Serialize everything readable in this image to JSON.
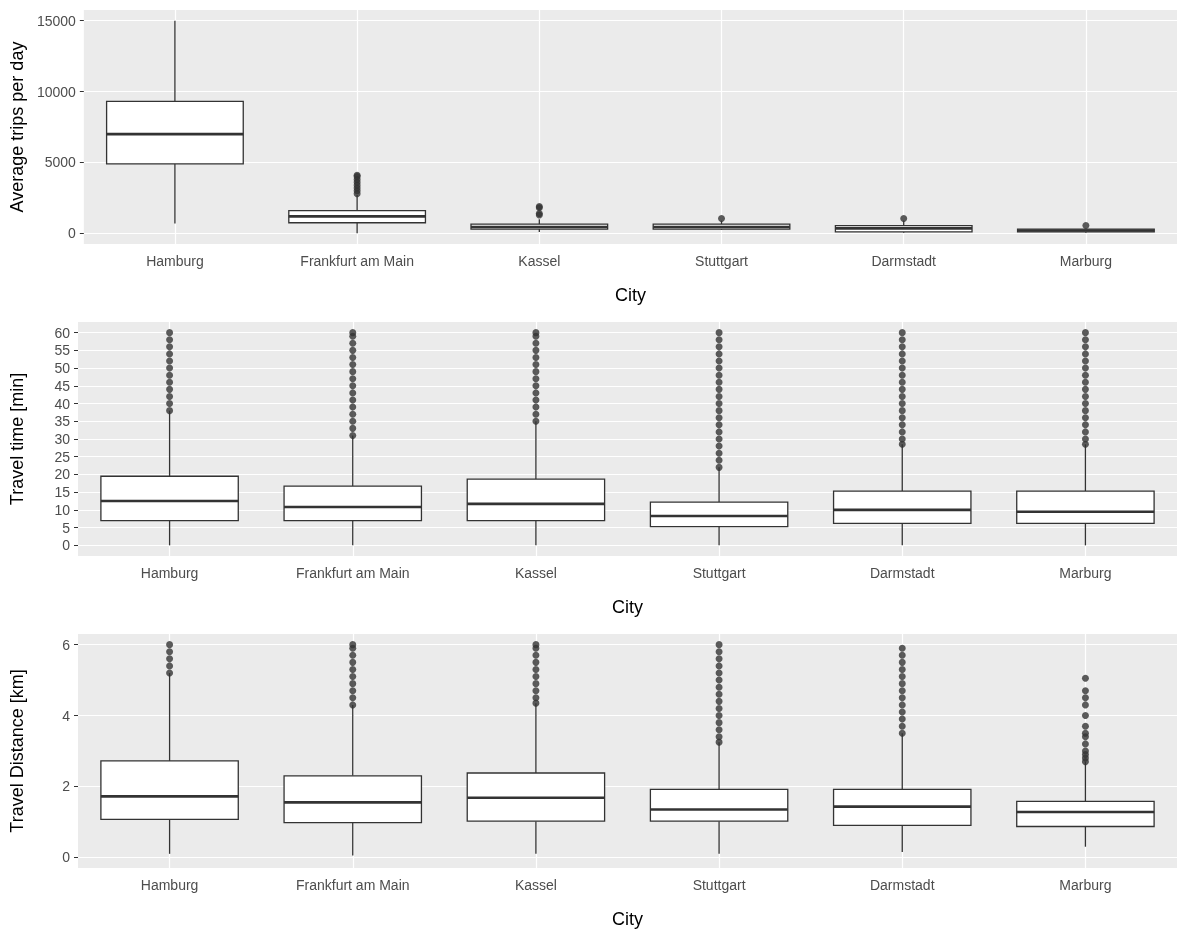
{
  "chart_data": [
    {
      "type": "box",
      "xlabel": "City",
      "ylabel": "Average trips per day",
      "categories": [
        "Hamburg",
        "Frankfurt am Main",
        "Kassel",
        "Stuttgart",
        "Darmstadt",
        "Marburg"
      ],
      "boxes": [
        {
          "low": 700,
          "q1": 4900,
          "median": 7000,
          "q3": 9300,
          "high": 15000
        },
        {
          "low": 0,
          "q1": 750,
          "median": 1200,
          "q3": 1600,
          "high": 2700,
          "outliers": [
            2800,
            3000,
            3200,
            3400,
            3600,
            3800,
            4000,
            4100
          ]
        },
        {
          "low": 100,
          "q1": 300,
          "median": 450,
          "q3": 650,
          "high": 1000,
          "outliers": [
            1300,
            1400,
            1800,
            1900
          ]
        },
        {
          "low": 250,
          "q1": 300,
          "median": 450,
          "q3": 650,
          "high": 900,
          "outliers": [
            1050
          ]
        },
        {
          "low": 50,
          "q1": 100,
          "median": 350,
          "q3": 550,
          "high": 900,
          "outliers": [
            1050
          ]
        },
        {
          "low": 50,
          "q1": 100,
          "median": 200,
          "q3": 300,
          "high": 300,
          "outliers": [
            550
          ]
        }
      ],
      "ylim": [
        -750,
        15750
      ],
      "yticks": [
        0,
        5000,
        10000,
        15000
      ],
      "grid": true
    },
    {
      "type": "box",
      "xlabel": "City",
      "ylabel": "Travel time [min]",
      "categories": [
        "Hamburg",
        "Frankfurt am Main",
        "Kassel",
        "Stuttgart",
        "Darmstadt",
        "Marburg"
      ],
      "boxes": [
        {
          "low": 0,
          "q1": 7,
          "median": 12.5,
          "q3": 19.5,
          "high": 38,
          "outliers": [
            38,
            40,
            42,
            44,
            46,
            48,
            50,
            52,
            54,
            56,
            58,
            60
          ]
        },
        {
          "low": 0,
          "q1": 7,
          "median": 10.8,
          "q3": 16.7,
          "high": 31,
          "outliers": [
            31,
            33,
            35,
            37,
            39,
            41,
            43,
            45,
            47,
            49,
            51,
            53,
            55,
            57,
            59,
            60
          ]
        },
        {
          "low": 0,
          "q1": 7,
          "median": 11.7,
          "q3": 18.7,
          "high": 35,
          "outliers": [
            35,
            37,
            39,
            41,
            43,
            45,
            47,
            49,
            51,
            53,
            55,
            57,
            59,
            60
          ]
        },
        {
          "low": 0,
          "q1": 5.3,
          "median": 8.3,
          "q3": 12.2,
          "high": 22,
          "outliers": [
            22,
            24,
            26,
            28,
            30,
            32,
            34,
            36,
            38,
            40,
            42,
            44,
            46,
            48,
            50,
            52,
            54,
            56,
            58,
            60
          ]
        },
        {
          "low": 0,
          "q1": 6.2,
          "median": 10,
          "q3": 15.3,
          "high": 28.5,
          "outliers": [
            28.5,
            30,
            32,
            34,
            36,
            38,
            40,
            42,
            44,
            46,
            48,
            50,
            52,
            54,
            56,
            58,
            60
          ]
        },
        {
          "low": 0,
          "q1": 6.2,
          "median": 9.5,
          "q3": 15.3,
          "high": 28.5,
          "outliers": [
            28.5,
            30,
            32,
            34,
            36,
            38,
            40,
            42,
            44,
            46,
            48,
            50,
            52,
            54,
            56,
            58,
            60
          ]
        }
      ],
      "ylim": [
        -3,
        63
      ],
      "yticks": [
        0,
        5,
        10,
        15,
        20,
        25,
        30,
        35,
        40,
        45,
        50,
        55,
        60
      ],
      "grid": true
    },
    {
      "type": "box",
      "xlabel": "City",
      "ylabel": "Travel Distance [km]",
      "categories": [
        "Hamburg",
        "Frankfurt am Main",
        "Kassel",
        "Stuttgart",
        "Darmstadt",
        "Marburg"
      ],
      "boxes": [
        {
          "low": 0.1,
          "q1": 1.07,
          "median": 1.72,
          "q3": 2.72,
          "high": 5.2,
          "outliers": [
            5.2,
            5.4,
            5.6,
            5.8,
            6
          ]
        },
        {
          "low": 0.05,
          "q1": 0.98,
          "median": 1.55,
          "q3": 2.3,
          "high": 4.3,
          "outliers": [
            4.3,
            4.5,
            4.7,
            4.9,
            5.1,
            5.3,
            5.5,
            5.7,
            5.9,
            6
          ]
        },
        {
          "low": 0.1,
          "q1": 1.02,
          "median": 1.68,
          "q3": 2.38,
          "high": 4.35,
          "outliers": [
            4.35,
            4.5,
            4.7,
            4.9,
            5.1,
            5.3,
            5.5,
            5.7,
            5.9,
            6
          ]
        },
        {
          "low": 0.1,
          "q1": 1.02,
          "median": 1.35,
          "q3": 1.92,
          "high": 3.25,
          "outliers": [
            3.25,
            3.4,
            3.6,
            3.8,
            4,
            4.2,
            4.4,
            4.6,
            4.8,
            5,
            5.2,
            5.4,
            5.6,
            5.8,
            6
          ]
        },
        {
          "low": 0.15,
          "q1": 0.9,
          "median": 1.43,
          "q3": 1.92,
          "high": 3.5,
          "outliers": [
            3.5,
            3.7,
            3.9,
            4.1,
            4.3,
            4.5,
            4.7,
            4.9,
            5.1,
            5.3,
            5.5,
            5.7,
            5.9
          ]
        },
        {
          "low": 0.3,
          "q1": 0.87,
          "median": 1.28,
          "q3": 1.58,
          "high": 2.7,
          "outliers": [
            2.7,
            2.8,
            2.9,
            3,
            3.2,
            3.4,
            3.5,
            3.7,
            4,
            4.3,
            4.5,
            4.7,
            5.05
          ]
        }
      ],
      "ylim": [
        -0.3,
        6.3
      ],
      "yticks": [
        0,
        2,
        4,
        6
      ],
      "grid": true
    }
  ]
}
